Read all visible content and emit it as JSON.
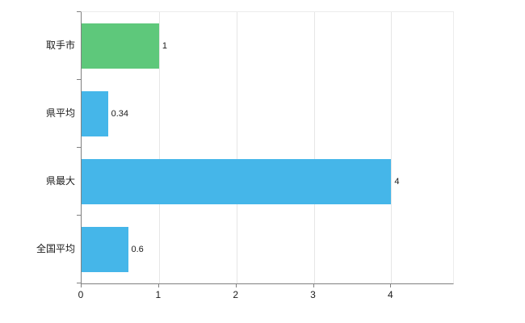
{
  "chart_data": {
    "type": "bar",
    "orientation": "horizontal",
    "title": "",
    "xlabel": "",
    "ylabel": "",
    "categories": [
      "取手市",
      "県平均",
      "県最大",
      "全国平均"
    ],
    "values": [
      1,
      0.34,
      4,
      0.6
    ],
    "value_labels": [
      "1",
      "0.34",
      "4",
      "0.6"
    ],
    "bar_colors": [
      "#5ec87b",
      "#45b6e9",
      "#45b6e9",
      "#45b6e9"
    ],
    "xticks": [
      0,
      1,
      2,
      3,
      4
    ],
    "xtick_labels": [
      "0",
      "1",
      "2",
      "3",
      "4"
    ],
    "xlim": [
      0,
      4.8
    ],
    "grid": "vertical",
    "legend": "none",
    "colors": {
      "grid": "#e6e6e6",
      "axis": "#808080",
      "text": "#1a1a1a",
      "background": "#ffffff"
    }
  }
}
